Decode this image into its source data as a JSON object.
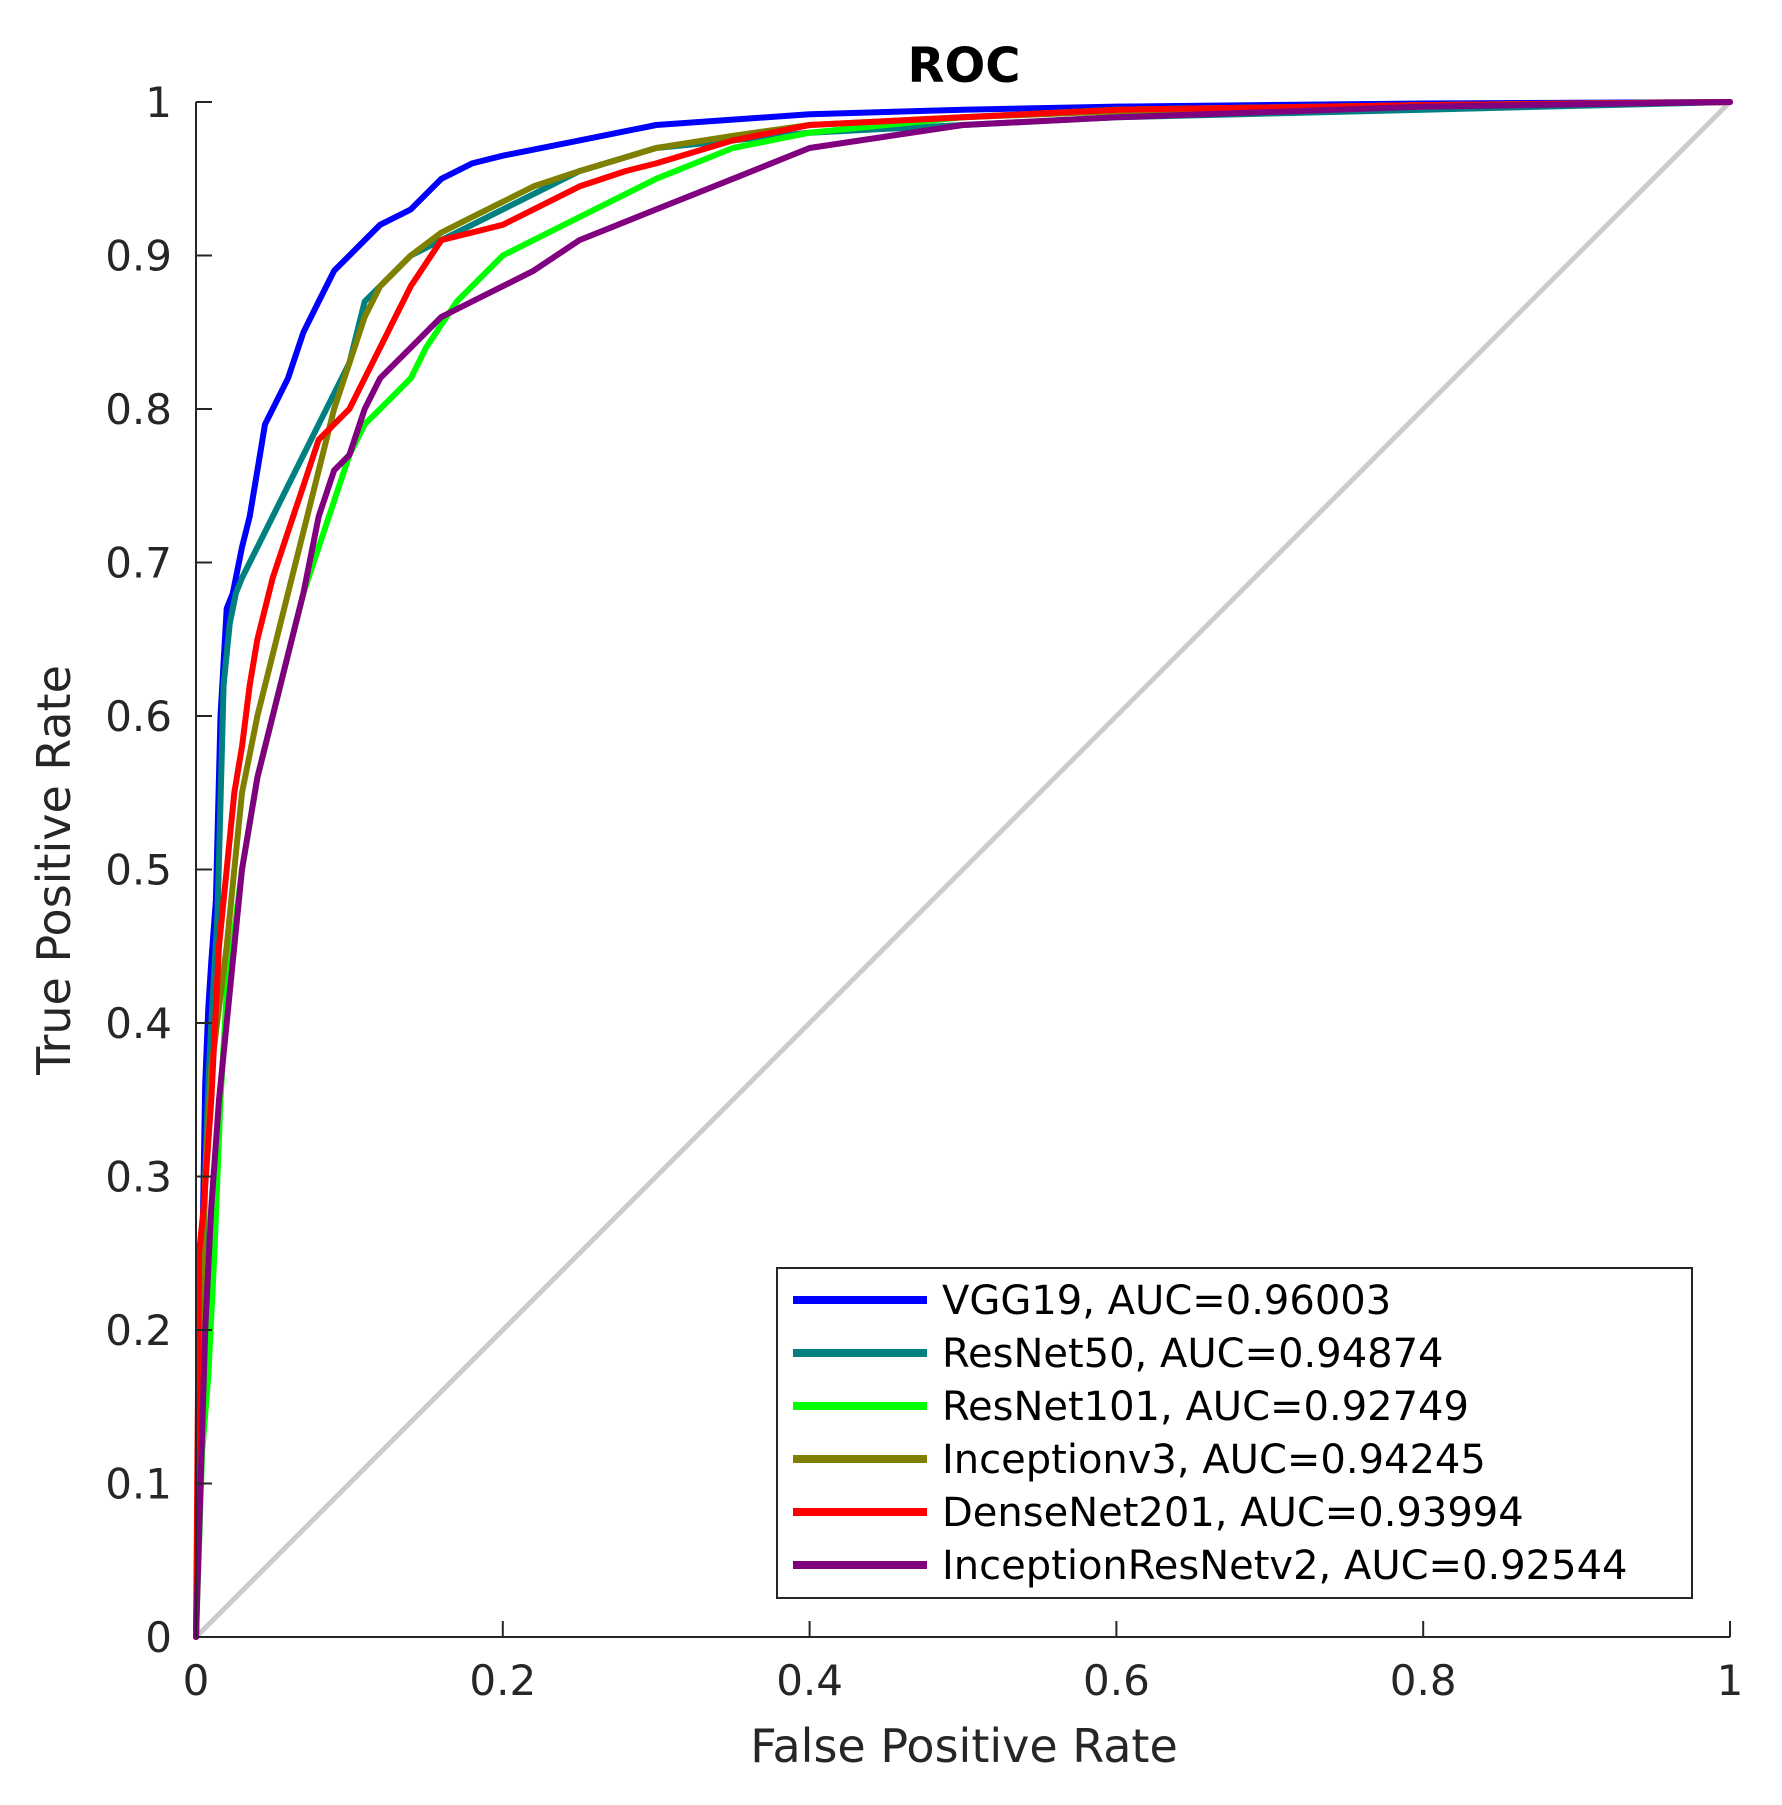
{
  "chart_data": {
    "type": "line",
    "title": "ROC",
    "xlabel": "False Positive Rate",
    "ylabel": "True Positive Rate",
    "xlim": [
      0,
      1
    ],
    "ylim": [
      0,
      1
    ],
    "xticks": [
      0,
      0.2,
      0.4,
      0.6,
      0.8,
      1
    ],
    "xtick_labels": [
      "0",
      "0.2",
      "0.4",
      "0.6",
      "0.8",
      "1"
    ],
    "yticks": [
      0,
      0.1,
      0.2,
      0.3,
      0.4,
      0.5,
      0.6,
      0.7,
      0.8,
      0.9,
      1
    ],
    "ytick_labels": [
      "0",
      "0.1",
      "0.2",
      "0.3",
      "0.4",
      "0.5",
      "0.6",
      "0.7",
      "0.8",
      "0.9",
      "1"
    ],
    "grid": false,
    "legend_position": "bottom-right",
    "reference_line": {
      "x": [
        0,
        1
      ],
      "y": [
        0,
        1
      ],
      "color": "#cccccc"
    },
    "series": [
      {
        "name": "VGG19, AUC=0.96003",
        "color": "#0000ff",
        "x": [
          0,
          0.002,
          0.004,
          0.006,
          0.008,
          0.01,
          0.013,
          0.016,
          0.02,
          0.024,
          0.03,
          0.035,
          0.04,
          0.045,
          0.05,
          0.06,
          0.07,
          0.08,
          0.09,
          0.1,
          0.11,
          0.12,
          0.14,
          0.16,
          0.18,
          0.2,
          0.25,
          0.3,
          0.4,
          0.5,
          0.6,
          0.8,
          1
        ],
        "y": [
          0,
          0.08,
          0.24,
          0.36,
          0.41,
          0.44,
          0.48,
          0.6,
          0.67,
          0.68,
          0.71,
          0.73,
          0.76,
          0.79,
          0.8,
          0.82,
          0.85,
          0.87,
          0.89,
          0.9,
          0.91,
          0.92,
          0.93,
          0.95,
          0.96,
          0.965,
          0.975,
          0.985,
          0.992,
          0.995,
          0.997,
          0.999,
          1
        ]
      },
      {
        "name": "ResNet50, AUC=0.94874",
        "color": "#008080",
        "x": [
          0,
          0.002,
          0.004,
          0.006,
          0.008,
          0.01,
          0.014,
          0.018,
          0.022,
          0.026,
          0.03,
          0.04,
          0.05,
          0.06,
          0.07,
          0.08,
          0.09,
          0.1,
          0.11,
          0.12,
          0.14,
          0.16,
          0.18,
          0.2,
          0.25,
          0.3,
          0.4,
          0.5,
          0.6,
          0.8,
          1
        ],
        "y": [
          0,
          0.1,
          0.2,
          0.3,
          0.36,
          0.4,
          0.47,
          0.62,
          0.66,
          0.68,
          0.69,
          0.71,
          0.73,
          0.75,
          0.77,
          0.79,
          0.81,
          0.83,
          0.87,
          0.88,
          0.9,
          0.91,
          0.92,
          0.93,
          0.955,
          0.97,
          0.98,
          0.985,
          0.99,
          0.995,
          1
        ]
      },
      {
        "name": "ResNet101, AUC=0.92749",
        "color": "#00ff00",
        "x": [
          0,
          0.004,
          0.008,
          0.012,
          0.016,
          0.02,
          0.025,
          0.03,
          0.035,
          0.04,
          0.05,
          0.06,
          0.07,
          0.08,
          0.09,
          0.1,
          0.11,
          0.12,
          0.14,
          0.15,
          0.17,
          0.2,
          0.25,
          0.3,
          0.35,
          0.4,
          0.5,
          0.6,
          0.8,
          1
        ],
        "y": [
          0,
          0.12,
          0.17,
          0.25,
          0.35,
          0.42,
          0.46,
          0.5,
          0.53,
          0.56,
          0.6,
          0.64,
          0.68,
          0.71,
          0.74,
          0.77,
          0.79,
          0.8,
          0.82,
          0.84,
          0.87,
          0.9,
          0.925,
          0.95,
          0.97,
          0.98,
          0.99,
          0.995,
          0.998,
          1
        ]
      },
      {
        "name": "Inceptionv3, AUC=0.94245",
        "color": "#808000",
        "x": [
          0,
          0.003,
          0.006,
          0.01,
          0.015,
          0.02,
          0.025,
          0.03,
          0.04,
          0.05,
          0.06,
          0.07,
          0.08,
          0.09,
          0.1,
          0.11,
          0.12,
          0.14,
          0.16,
          0.18,
          0.2,
          0.22,
          0.25,
          0.3,
          0.35,
          0.4,
          0.5,
          0.6,
          0.8,
          1
        ],
        "y": [
          0,
          0.2,
          0.3,
          0.37,
          0.41,
          0.45,
          0.5,
          0.55,
          0.6,
          0.64,
          0.68,
          0.72,
          0.76,
          0.8,
          0.83,
          0.86,
          0.88,
          0.9,
          0.915,
          0.925,
          0.935,
          0.945,
          0.955,
          0.97,
          0.978,
          0.985,
          0.99,
          0.994,
          0.998,
          1
        ]
      },
      {
        "name": "DenseNet201, AUC=0.93994",
        "color": "#ff0000",
        "x": [
          0,
          0.002,
          0.005,
          0.01,
          0.015,
          0.02,
          0.025,
          0.03,
          0.035,
          0.04,
          0.05,
          0.06,
          0.07,
          0.08,
          0.09,
          0.1,
          0.11,
          0.12,
          0.13,
          0.14,
          0.16,
          0.18,
          0.2,
          0.22,
          0.25,
          0.28,
          0.3,
          0.35,
          0.4,
          0.5,
          0.6,
          0.8,
          1
        ],
        "y": [
          0,
          0.25,
          0.28,
          0.35,
          0.45,
          0.5,
          0.55,
          0.58,
          0.62,
          0.65,
          0.69,
          0.72,
          0.75,
          0.78,
          0.79,
          0.8,
          0.82,
          0.84,
          0.86,
          0.88,
          0.91,
          0.915,
          0.92,
          0.93,
          0.945,
          0.955,
          0.96,
          0.975,
          0.985,
          0.99,
          0.995,
          0.998,
          1
        ]
      },
      {
        "name": "InceptionResNetv2, AUC=0.92544",
        "color": "#800080",
        "x": [
          0,
          0.003,
          0.006,
          0.01,
          0.015,
          0.02,
          0.025,
          0.03,
          0.035,
          0.04,
          0.05,
          0.06,
          0.07,
          0.08,
          0.09,
          0.1,
          0.11,
          0.12,
          0.14,
          0.16,
          0.18,
          0.2,
          0.22,
          0.25,
          0.3,
          0.35,
          0.4,
          0.5,
          0.6,
          0.8,
          1
        ],
        "y": [
          0,
          0.1,
          0.2,
          0.28,
          0.35,
          0.4,
          0.45,
          0.5,
          0.53,
          0.56,
          0.6,
          0.64,
          0.68,
          0.73,
          0.76,
          0.77,
          0.8,
          0.82,
          0.84,
          0.86,
          0.87,
          0.88,
          0.89,
          0.91,
          0.93,
          0.95,
          0.97,
          0.985,
          0.99,
          0.997,
          1
        ]
      }
    ]
  }
}
